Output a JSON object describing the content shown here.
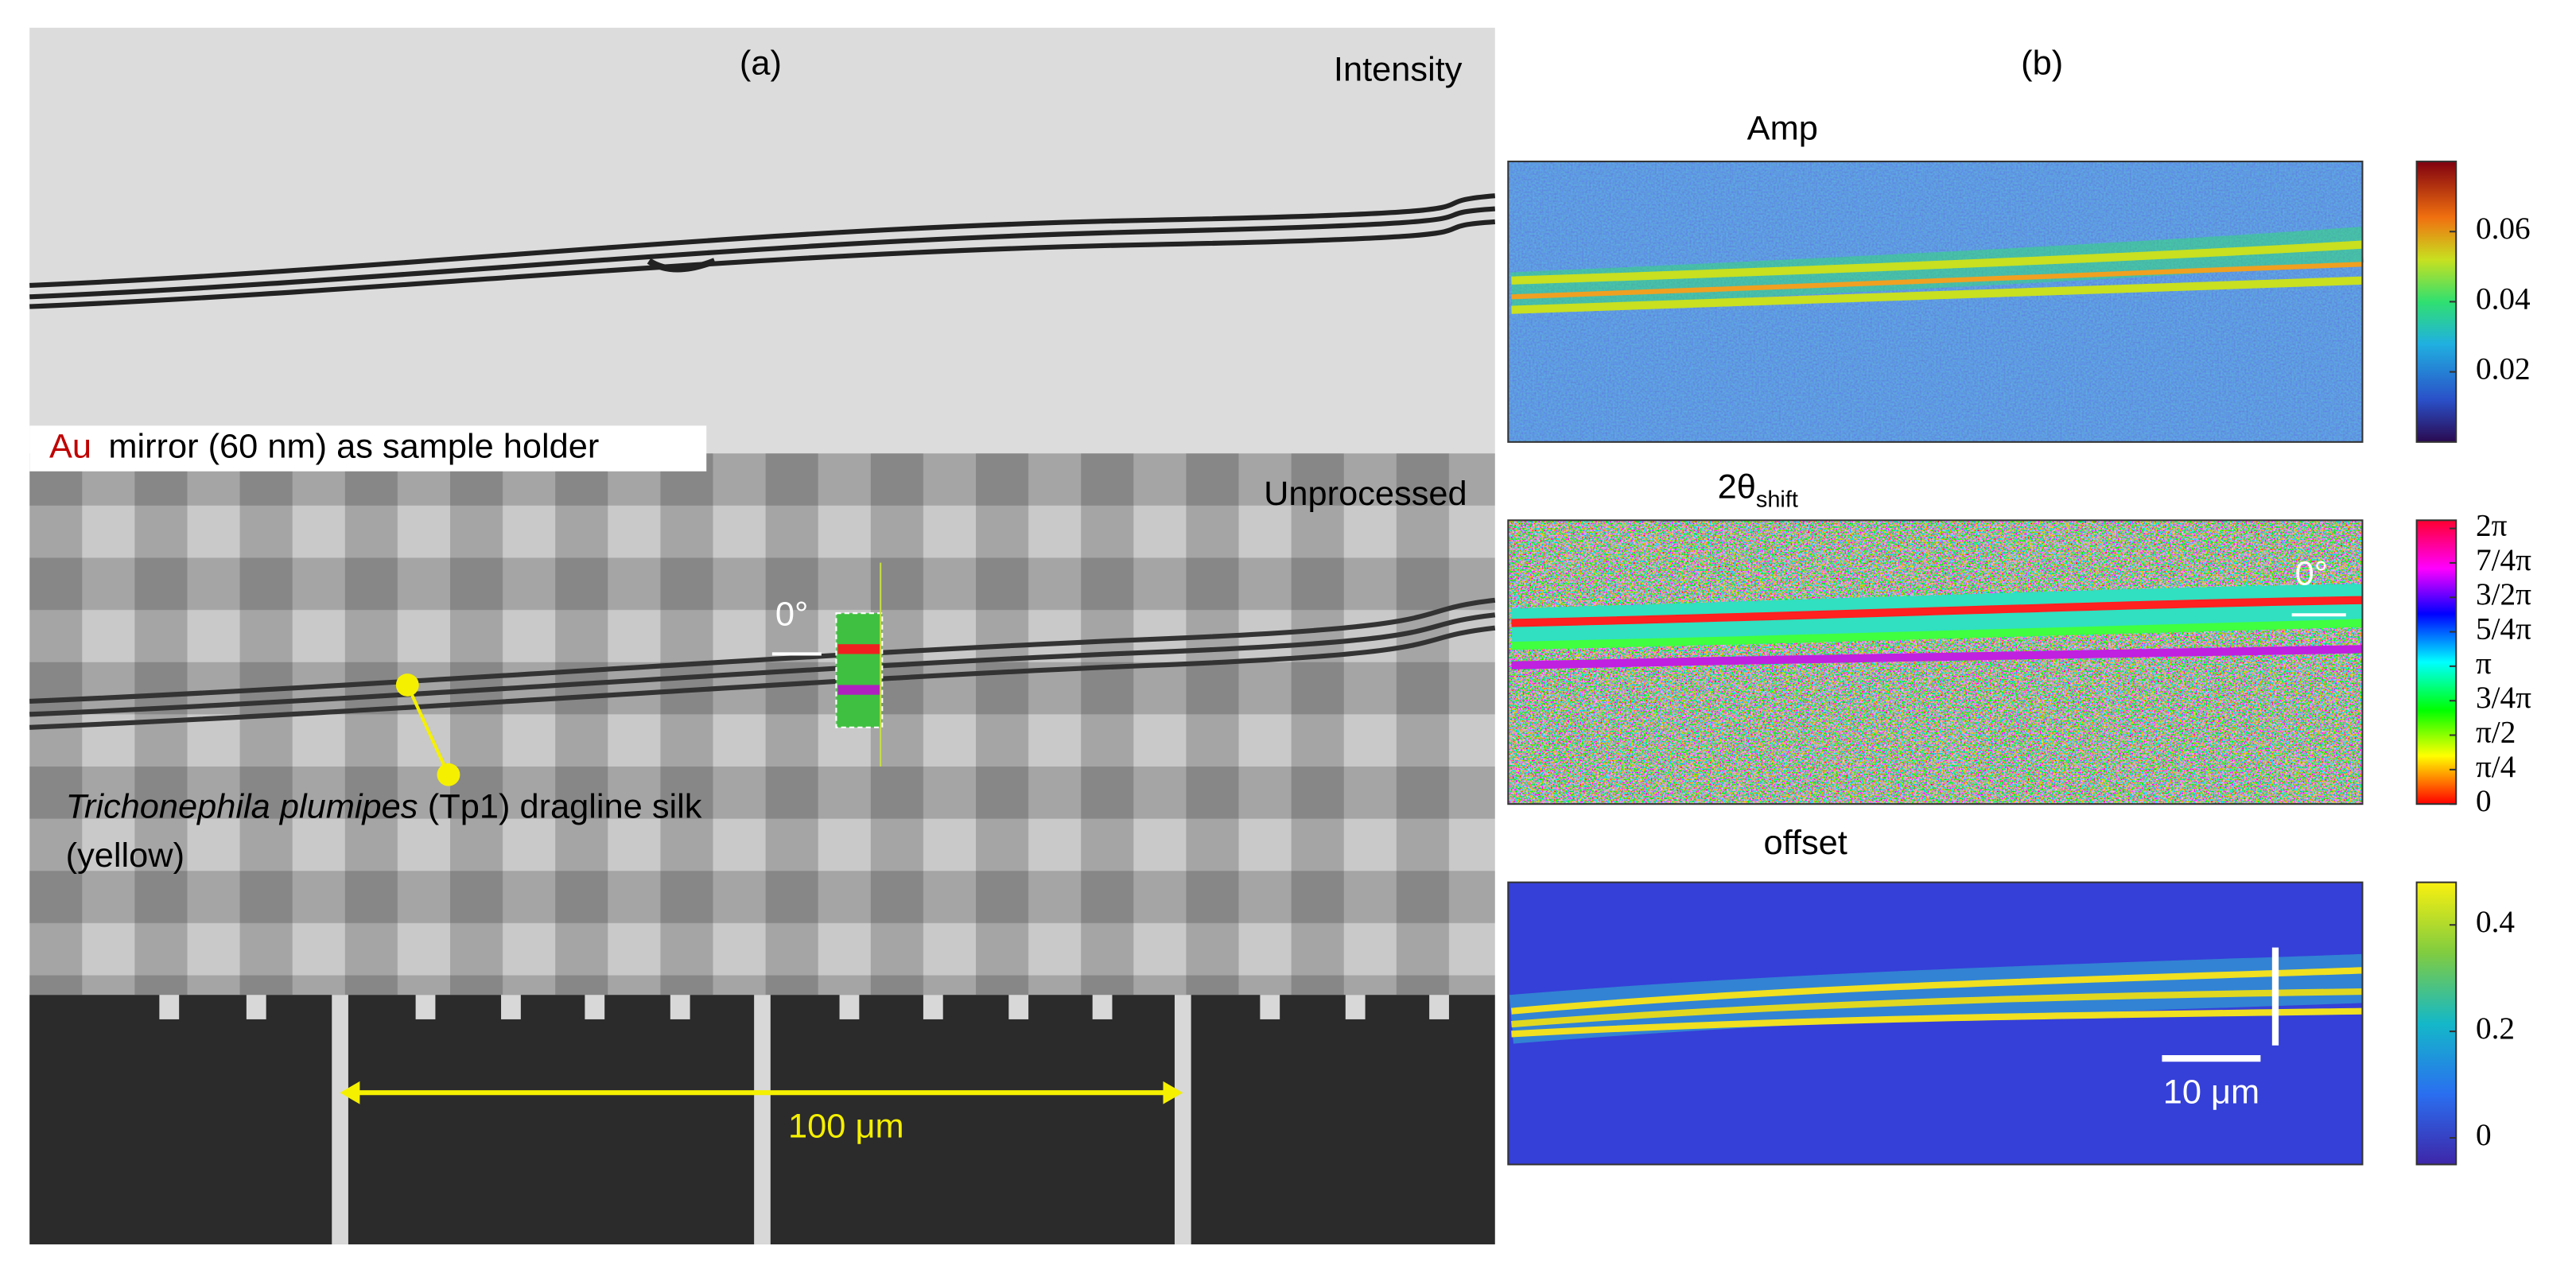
{
  "panel_a": {
    "label": "(a)",
    "intensity": "Intensity",
    "mirror_au": "Au",
    "mirror_text": "mirror (60 nm) as sample holder",
    "unprocessed": "Unprocessed",
    "angle": "0°",
    "species": "Trichonephila plumipes",
    "silk": "(Tp1) dragline silk",
    "color_note": "(yellow)",
    "scale": "100 μm"
  },
  "panel_b": {
    "label": "(b)",
    "maps": [
      {
        "title": "Amp",
        "colorbar": {
          "lim": [
            0,
            0.08
          ],
          "ticks": [
            0.02,
            0.04,
            0.06
          ]
        }
      },
      {
        "title": "2θ",
        "title_sub": "shift",
        "angle": "0°",
        "colorbar": {
          "lim": [
            0,
            6.47
          ],
          "ticks": [
            {
              "value": 0,
              "label": "0"
            },
            {
              "value": 0.785,
              "label": "π/4"
            },
            {
              "value": 1.571,
              "label": "π/2"
            },
            {
              "value": 2.356,
              "label": "3/4π"
            },
            {
              "value": 3.142,
              "label": "π"
            },
            {
              "value": 3.927,
              "label": "5/4π"
            },
            {
              "value": 4.712,
              "label": "3/2π"
            },
            {
              "value": 5.498,
              "label": "7/4π"
            },
            {
              "value": 6.283,
              "label": "2π"
            }
          ]
        }
      },
      {
        "title": "offset",
        "scale": "10 μm",
        "colorbar": {
          "lim": [
            -0.05,
            0.48
          ],
          "ticks": [
            0,
            0.2,
            0.4
          ]
        }
      }
    ]
  }
}
